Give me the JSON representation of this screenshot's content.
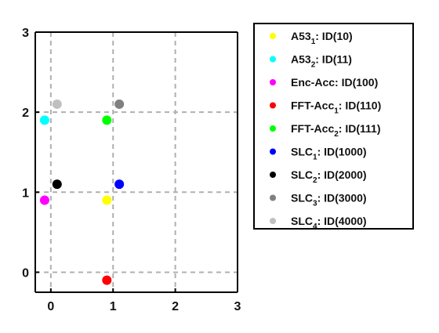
{
  "chart_data": {
    "type": "scatter",
    "title": "",
    "xlabel": "",
    "ylabel": "",
    "xlim": [
      -0.25,
      3
    ],
    "ylim": [
      -0.25,
      3
    ],
    "xticks": [
      0,
      1,
      2,
      3
    ],
    "yticks": [
      0,
      1,
      2,
      3
    ],
    "xtick_labels": [
      "0",
      "1",
      "2",
      "3"
    ],
    "ytick_labels": [
      "0",
      "1",
      "2",
      "3"
    ],
    "grid": true,
    "legend_position": "outside-right",
    "series": [
      {
        "name": "A53",
        "sub": "1",
        "suffix": ": ID(10)",
        "color": "#ffff00",
        "x": 0.9,
        "y": 0.9
      },
      {
        "name": "A53",
        "sub": "2",
        "suffix": ": ID(11)",
        "color": "#00ffff",
        "x": -0.1,
        "y": 1.9
      },
      {
        "name": "Enc-Acc: ID(100)",
        "sub": "",
        "suffix": "",
        "color": "#ff00ff",
        "x": -0.1,
        "y": 0.9
      },
      {
        "name": "FFT-Acc",
        "sub": "1",
        "suffix": ": ID(110)",
        "color": "#ff0000",
        "x": 0.9,
        "y": -0.1
      },
      {
        "name": "FFT-Acc",
        "sub": "2",
        "suffix": ": ID(111)",
        "color": "#00ff00",
        "x": 0.9,
        "y": 1.9
      },
      {
        "name": "SLC",
        "sub": "1",
        "suffix": ": ID(1000)",
        "color": "#0000ff",
        "x": 1.1,
        "y": 1.1
      },
      {
        "name": "SLC",
        "sub": "2",
        "suffix": ": ID(2000)",
        "color": "#000000",
        "x": 0.1,
        "y": 1.1
      },
      {
        "name": "SLC",
        "sub": "3",
        "suffix": ": ID(3000)",
        "color": "#808080",
        "x": 1.1,
        "y": 2.1
      },
      {
        "name": "SLC",
        "sub": "4",
        "suffix": ": ID(4000)",
        "color": "#c0c0c0",
        "x": 0.1,
        "y": 2.1
      }
    ]
  }
}
